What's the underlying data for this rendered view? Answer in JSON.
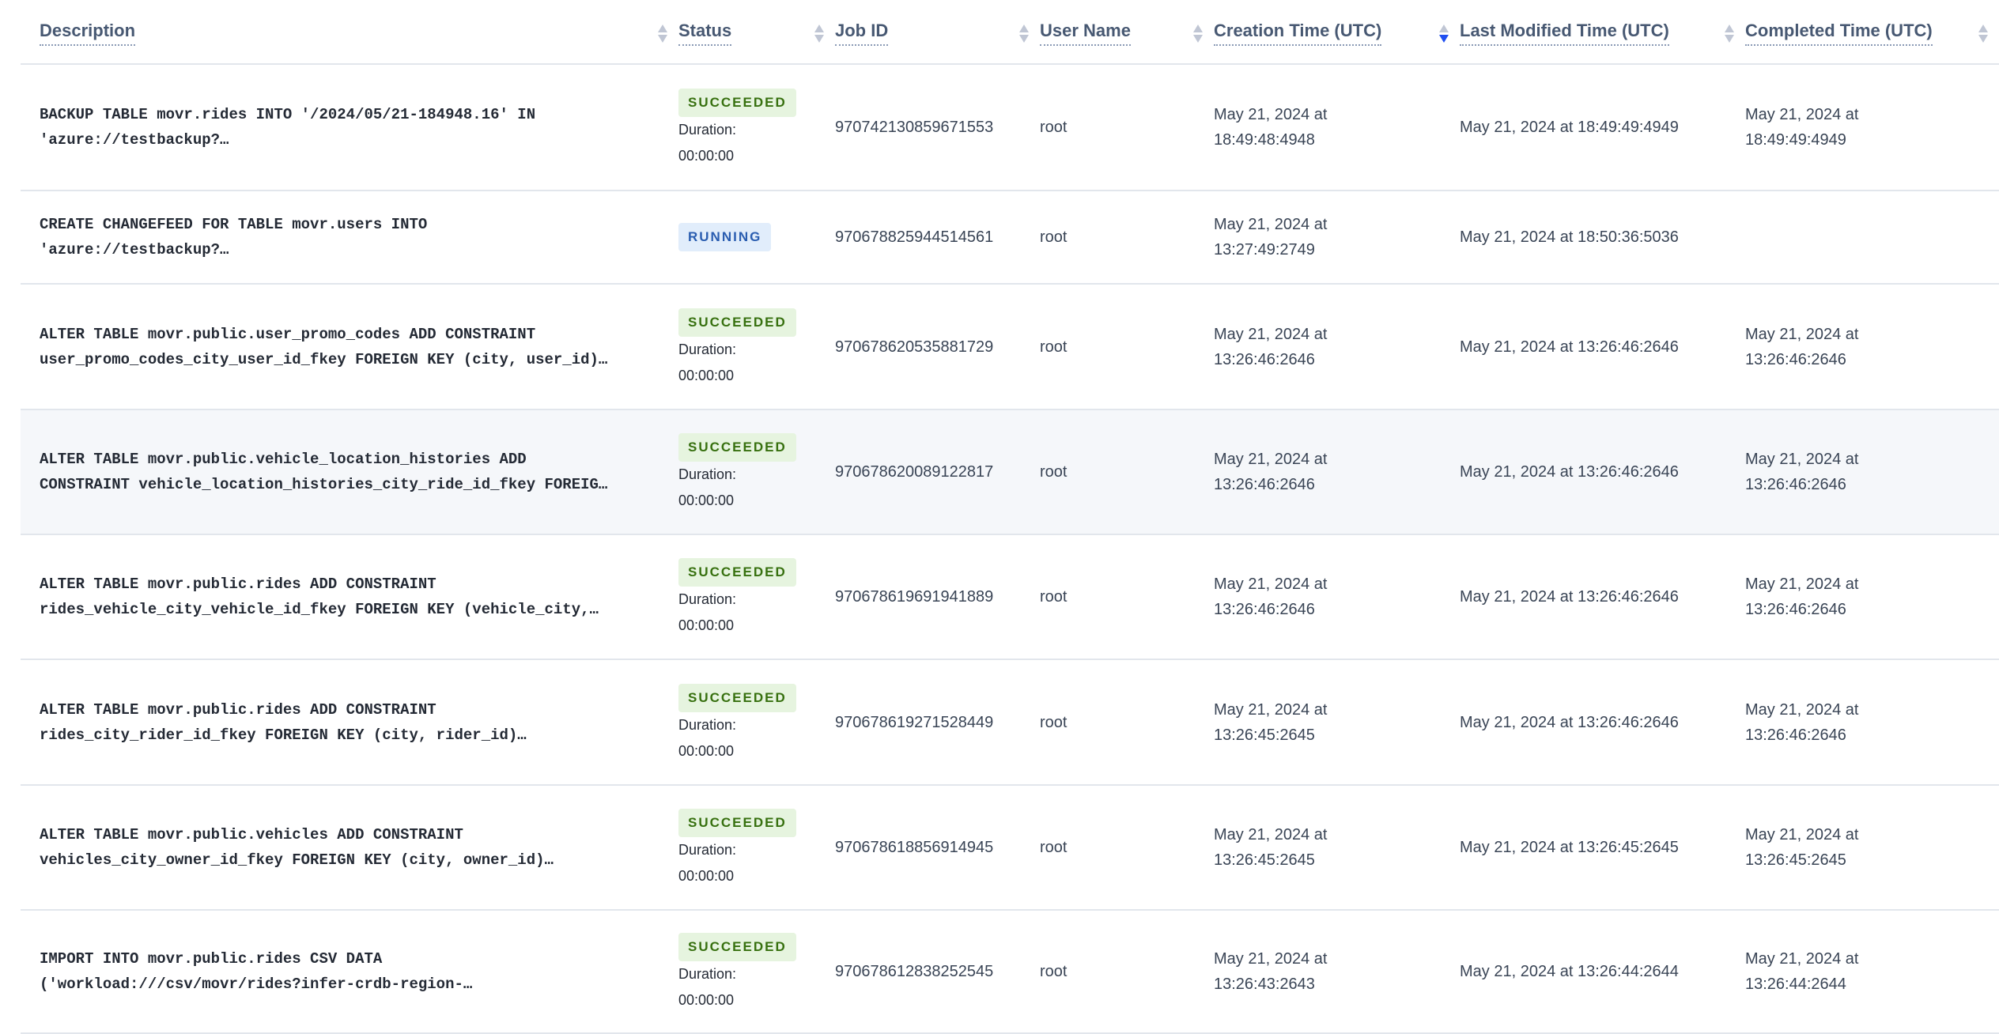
{
  "columns": [
    "Description",
    "Status",
    "Job ID",
    "User Name",
    "Creation Time (UTC)",
    "Last Modified Time (UTC)",
    "Completed Time (UTC)"
  ],
  "sorted_column": "Creation Time (UTC)",
  "sort_direction": "descending",
  "duration_label": "Duration:",
  "colors": {
    "succeeded_bg": "#e6f4df",
    "succeeded_text": "#37700f",
    "running_bg": "#e1edfb",
    "running_text": "#2a5db0",
    "sort_active": "#1f4ef0"
  },
  "rows": [
    {
      "desc": [
        "BACKUP TABLE movr.rides INTO '/2024/05/21-184948.16' IN",
        "'azure://testbackup?…"
      ],
      "status": "SUCCEEDED",
      "duration": "00:00:00",
      "job_id": "970742130859671553",
      "user": "root",
      "created": [
        "May 21, 2024 at",
        "18:49:48:4948"
      ],
      "modified": "May 21, 2024 at 18:49:49:4949",
      "completed": [
        "May 21, 2024 at",
        "18:49:49:4949"
      ]
    },
    {
      "desc": [
        "CREATE CHANGEFEED FOR TABLE movr.users INTO",
        "'azure://testbackup?…"
      ],
      "status": "RUNNING",
      "duration": "",
      "job_id": "970678825944514561",
      "user": "root",
      "created": [
        "May 21, 2024 at",
        "13:27:49:2749"
      ],
      "modified": "May 21, 2024 at 18:50:36:5036",
      "completed": [
        "",
        ""
      ]
    },
    {
      "desc": [
        "ALTER TABLE movr.public.user_promo_codes ADD CONSTRAINT",
        "user_promo_codes_city_user_id_fkey FOREIGN KEY (city, user_id)…"
      ],
      "status": "SUCCEEDED",
      "duration": "00:00:00",
      "job_id": "970678620535881729",
      "user": "root",
      "created": [
        "May 21, 2024 at",
        "13:26:46:2646"
      ],
      "modified": "May 21, 2024 at 13:26:46:2646",
      "completed": [
        "May 21, 2024 at",
        "13:26:46:2646"
      ]
    },
    {
      "desc": [
        "ALTER TABLE movr.public.vehicle_location_histories ADD",
        "CONSTRAINT vehicle_location_histories_city_ride_id_fkey FOREIG…"
      ],
      "status": "SUCCEEDED",
      "duration": "00:00:00",
      "job_id": "970678620089122817",
      "user": "root",
      "created": [
        "May 21, 2024 at",
        "13:26:46:2646"
      ],
      "modified": "May 21, 2024 at 13:26:46:2646",
      "completed": [
        "May 21, 2024 at",
        "13:26:46:2646"
      ]
    },
    {
      "desc": [
        "ALTER TABLE movr.public.rides ADD CONSTRAINT",
        "rides_vehicle_city_vehicle_id_fkey FOREIGN KEY (vehicle_city,…"
      ],
      "status": "SUCCEEDED",
      "duration": "00:00:00",
      "job_id": "970678619691941889",
      "user": "root",
      "created": [
        "May 21, 2024 at",
        "13:26:46:2646"
      ],
      "modified": "May 21, 2024 at 13:26:46:2646",
      "completed": [
        "May 21, 2024 at",
        "13:26:46:2646"
      ]
    },
    {
      "desc": [
        "ALTER TABLE movr.public.rides ADD CONSTRAINT",
        "rides_city_rider_id_fkey FOREIGN KEY (city, rider_id)…"
      ],
      "status": "SUCCEEDED",
      "duration": "00:00:00",
      "job_id": "970678619271528449",
      "user": "root",
      "created": [
        "May 21, 2024 at",
        "13:26:45:2645"
      ],
      "modified": "May 21, 2024 at 13:26:46:2646",
      "completed": [
        "May 21, 2024 at",
        "13:26:46:2646"
      ]
    },
    {
      "desc": [
        "ALTER TABLE movr.public.vehicles ADD CONSTRAINT",
        "vehicles_city_owner_id_fkey FOREIGN KEY (city, owner_id)…"
      ],
      "status": "SUCCEEDED",
      "duration": "00:00:00",
      "job_id": "970678618856914945",
      "user": "root",
      "created": [
        "May 21, 2024 at",
        "13:26:45:2645"
      ],
      "modified": "May 21, 2024 at 13:26:45:2645",
      "completed": [
        "May 21, 2024 at",
        "13:26:45:2645"
      ]
    },
    {
      "desc": [
        "IMPORT INTO movr.public.rides CSV DATA",
        "('workload:///csv/movr/rides?infer-crdb-region-…"
      ],
      "status": "SUCCEEDED",
      "duration": "00:00:00",
      "job_id": "970678612838252545",
      "user": "root",
      "created": [
        "May 21, 2024 at",
        "13:26:43:2643"
      ],
      "modified": "May 21, 2024 at 13:26:44:2644",
      "completed": [
        "May 21, 2024 at",
        "13:26:44:2644"
      ]
    }
  ]
}
